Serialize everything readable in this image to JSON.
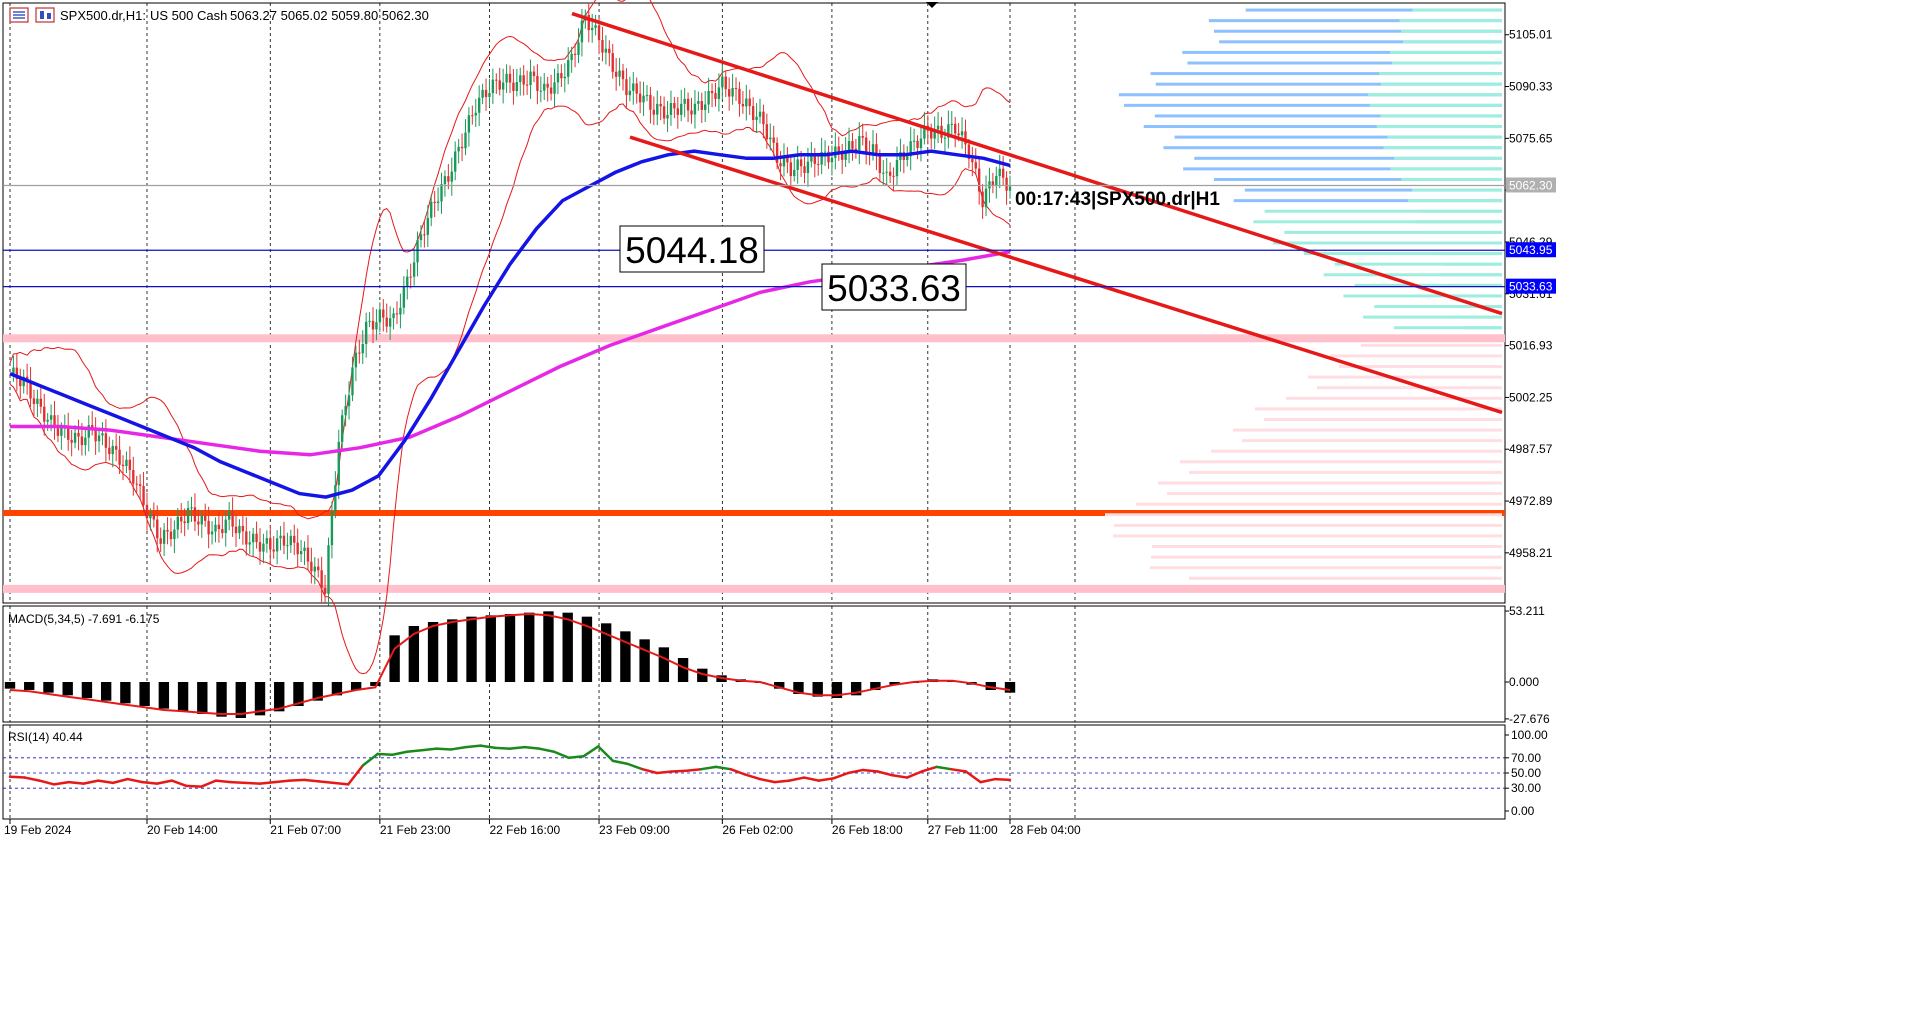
{
  "header": {
    "symbol": "SPX500.dr,H1:",
    "description": "US 500 Cash",
    "ohlc": "5063.27 5065.02 5059.80 5062.30"
  },
  "timer_label": "00:17:43|SPX500.dr|H1",
  "level_boxes": [
    {
      "label": "5044.18",
      "value": 5044.18
    },
    {
      "label": "5033.63",
      "value": 5033.63
    }
  ],
  "price_badges": [
    {
      "label": "5062.30",
      "value": 5062.3,
      "color": "#b0b0b0"
    },
    {
      "label": "5043.95",
      "value": 5043.95,
      "color": "#0000ff"
    },
    {
      "label": "5033.63",
      "value": 5033.63,
      "color": "#0000ff"
    }
  ],
  "colors": {
    "ma_fast": "#1414e6",
    "ma_slow": "#e628e6",
    "channel": "#e61919",
    "bollinger": "#e61919",
    "support": "#ff4400",
    "zone": "#ffc0cb",
    "profile_upper_blue": "#8cc0ff",
    "profile_upper_cyan": "#9eeee0",
    "profile_lower_pink": "#ffdde2",
    "rsi_up": "#1a8a1a",
    "rsi_down": "#e61919"
  },
  "chart_data": [
    {
      "type": "candlestick",
      "panel": "price",
      "symbol": "SPX500.dr",
      "timeframe": "H1",
      "title": "SPX500.dr,H1: US 500 Cash",
      "ylim": [
        4944,
        5114
      ],
      "y_ticks": [
        5105.01,
        5090.33,
        5075.65,
        5060.97,
        5046.29,
        5031.61,
        5016.93,
        5002.25,
        4987.57,
        4972.89,
        4958.21
      ],
      "y_tick_labels": [
        "5105.01",
        "5090.33",
        "5075.65",
        "",
        "5046.29",
        "5031.61",
        "5016.93",
        "5002.25",
        "4987.57",
        "4972.89",
        "4958.21"
      ],
      "x_tick_labels": [
        "19 Feb 2024",
        "20 Feb 14:00",
        "21 Feb 07:00",
        "21 Feb 23:00",
        "22 Feb 16:00",
        "23 Feb 09:00",
        "26 Feb 02:00",
        "26 Feb 18:00",
        "27 Feb 11:00",
        "28 Feb 04:00"
      ],
      "grid": true,
      "last_price": 5062.3,
      "horizontal_levels": [
        5062.3,
        5043.95,
        5033.63
      ],
      "support_level": 4969.5,
      "zones": [
        5019,
        4948
      ],
      "price_path": [
        5009,
        5007,
        5000,
        4995,
        4992,
        4990,
        4993,
        4989,
        4985,
        4980,
        4970,
        4962,
        4965,
        4970,
        4967,
        4964,
        4968,
        4963,
        4961,
        4960,
        4962,
        4960,
        4955,
        4948,
        4990,
        5010,
        5022,
        5025,
        5024,
        5035,
        5048,
        5058,
        5065,
        5075,
        5085,
        5090,
        5092,
        5091,
        5093,
        5089,
        5092,
        5098,
        5110,
        5104,
        5096,
        5090,
        5088,
        5084,
        5083,
        5085,
        5084,
        5087,
        5091,
        5088,
        5084,
        5080,
        5070,
        5067,
        5068,
        5070,
        5071,
        5072,
        5075,
        5072,
        5064,
        5070,
        5074,
        5078,
        5077,
        5079,
        5072,
        5058,
        5066,
        5062
      ],
      "price_path_x_labels": {
        "0": "19 Feb 2024",
        "10": "20 Feb 14:00",
        "19": "21 Feb 07:00",
        "27": "21 Feb 23:00",
        "35": "22 Feb 16:00",
        "43": "23 Feb 09:00",
        "52": "26 Feb 02:00",
        "60": "26 Feb 18:00",
        "67": "27 Feb 11:00",
        "73": "28 Feb 04:00"
      },
      "ma_fast": [
        5009,
        5006,
        5003,
        5000,
        4997,
        4994,
        4991,
        4988,
        4984,
        4981,
        4978,
        4975,
        4974,
        4976,
        4980,
        4990,
        5002,
        5015,
        5028,
        5040,
        5050,
        5058,
        5062,
        5066,
        5069,
        5071,
        5072,
        5071,
        5070,
        5070,
        5071,
        5071,
        5072,
        5071,
        5071,
        5072,
        5071,
        5070,
        5068
      ],
      "ma_slow": [
        4994,
        4994,
        4993,
        4991,
        4989,
        4987,
        4986,
        4988,
        4991,
        4997,
        5004,
        5011,
        5017,
        5022,
        5027,
        5032,
        5035,
        5037,
        5039,
        5041,
        5043.5
      ],
      "channel_upper": [
        [
          5111,
          5066
        ],
        [
          5026,
          5065
        ]
      ],
      "channel_lower": [
        [
          5076,
          5059
        ],
        [
          4998,
          5062
        ]
      ]
    },
    {
      "type": "bar",
      "panel": "macd",
      "title": "MACD(5,34,5) -7.691 -6.175",
      "y_ticks": [
        53.211,
        0.0,
        -27.676
      ],
      "y_tick_labels": [
        "53.211",
        "0.000",
        "-27.676"
      ],
      "ylim": [
        -30,
        57
      ],
      "histogram": [
        -5,
        -6,
        -8,
        -10,
        -12,
        -14,
        -16,
        -18,
        -20,
        -22,
        -24,
        -26,
        -27,
        -25,
        -22,
        -18,
        -14,
        -10,
        -6,
        -3,
        35,
        42,
        45,
        47,
        49,
        50,
        51,
        52,
        53,
        52,
        49,
        44,
        38,
        32,
        26,
        18,
        10,
        5,
        2,
        0,
        -5,
        -9,
        -11,
        -12,
        -10,
        -6,
        -2,
        0,
        2,
        1,
        -2,
        -6,
        -8
      ],
      "signal": [
        -6,
        -7,
        -9,
        -11,
        -13,
        -15,
        -17,
        -19,
        -21,
        -22,
        -23,
        -24,
        -24,
        -22,
        -20,
        -16,
        -12,
        -9,
        -6,
        -4,
        25,
        36,
        42,
        45,
        47,
        49,
        50,
        51,
        50,
        47,
        42,
        36,
        30,
        24,
        18,
        11,
        6,
        3,
        1,
        0,
        -4,
        -8,
        -10,
        -10,
        -8,
        -5,
        -2,
        0,
        1,
        1,
        -1,
        -4,
        -6
      ]
    },
    {
      "type": "line",
      "panel": "rsi",
      "title": "RSI(14) 40.44",
      "y_ticks": [
        100.0,
        70.0,
        50.0,
        30.0,
        0.0
      ],
      "y_tick_labels": [
        "100.00",
        "70.00",
        "50.00",
        "30.00",
        "0.00"
      ],
      "ylim": [
        0,
        100
      ],
      "levels": [
        70,
        50,
        30
      ],
      "values": [
        45,
        44,
        40,
        35,
        38,
        36,
        40,
        37,
        42,
        38,
        36,
        40,
        33,
        32,
        40,
        38,
        37,
        36,
        38,
        40,
        41,
        39,
        37,
        35,
        60,
        75,
        74,
        78,
        80,
        82,
        81,
        84,
        86,
        83,
        82,
        84,
        82,
        78,
        70,
        72,
        85,
        66,
        62,
        55,
        50,
        52,
        53,
        55,
        58,
        55,
        48,
        42,
        38,
        40,
        44,
        40,
        43,
        50,
        54,
        52,
        47,
        44,
        52,
        58,
        55,
        52,
        38,
        42,
        41
      ]
    }
  ]
}
